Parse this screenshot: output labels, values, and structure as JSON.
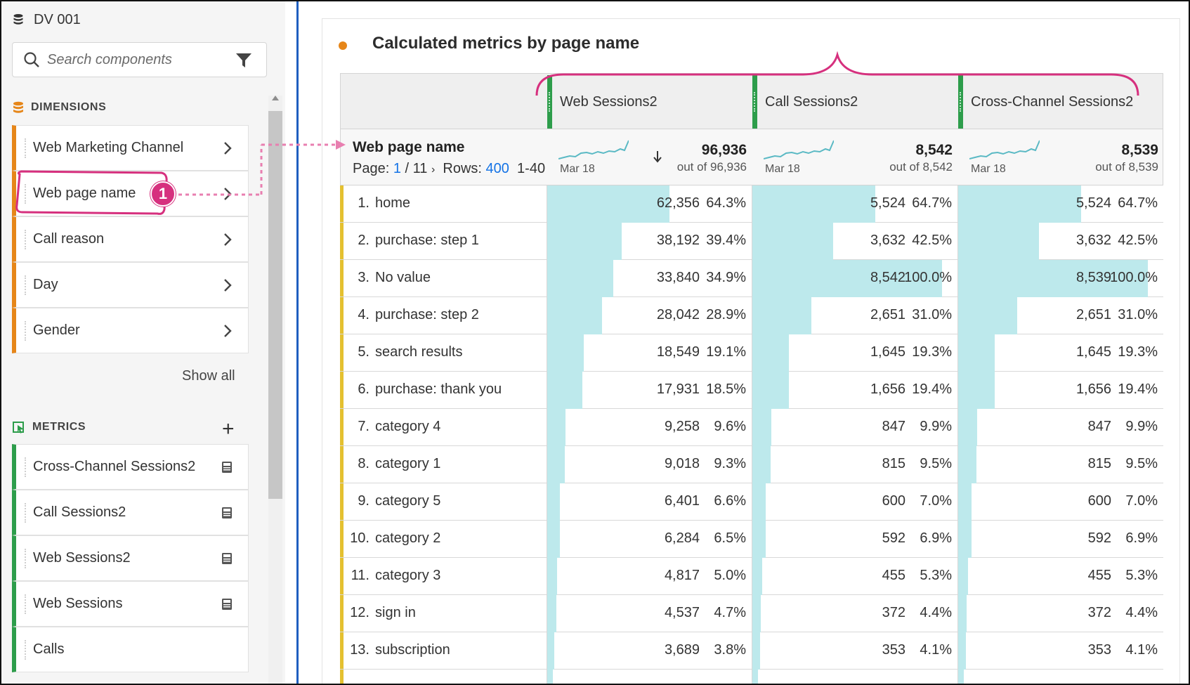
{
  "left_panel": {
    "dataset": "DV 001",
    "search_placeholder": "Search components",
    "dimensions_header": "DIMENSIONS",
    "dimensions": [
      "Web Marketing Channel",
      "Web page name",
      "Call reason",
      "Day",
      "Gender"
    ],
    "show_all": "Show all",
    "metrics_header": "METRICS",
    "metrics": [
      "Cross-Channel Sessions2",
      "Call Sessions2",
      "Web Sessions2",
      "Web Sessions",
      "Calls"
    ]
  },
  "panel": {
    "title": "Calculated metrics by page name",
    "dimension_title": "Web page name",
    "page_label": "Page:",
    "page_current": "1",
    "page_total": "/ 11",
    "rows_label": "Rows:",
    "rows_value": "400",
    "range_text": "1-40",
    "annotation_badge": "1"
  },
  "columns": [
    {
      "name": "Web Sessions2",
      "total": "96,936",
      "out_of": "out of 96,936",
      "spark_date": "Mar 18"
    },
    {
      "name": "Call Sessions2",
      "total": "8,542",
      "out_of": "out of 8,542",
      "spark_date": "Mar 18"
    },
    {
      "name": "Cross-Channel Sessions2",
      "total": "8,539",
      "out_of": "out of 8,539",
      "spark_date": "Mar 18"
    }
  ],
  "rows": [
    {
      "num": "1.",
      "name": "home",
      "cells": [
        {
          "v": "62,356",
          "p": "64.3%",
          "f": 0.643
        },
        {
          "v": "5,524",
          "p": "64.7%",
          "f": 0.647
        },
        {
          "v": "5,524",
          "p": "64.7%",
          "f": 0.647
        }
      ]
    },
    {
      "num": "2.",
      "name": "purchase: step 1",
      "cells": [
        {
          "v": "38,192",
          "p": "39.4%",
          "f": 0.394
        },
        {
          "v": "3,632",
          "p": "42.5%",
          "f": 0.425
        },
        {
          "v": "3,632",
          "p": "42.5%",
          "f": 0.425
        }
      ]
    },
    {
      "num": "3.",
      "name": "No value",
      "cells": [
        {
          "v": "33,840",
          "p": "34.9%",
          "f": 0.349
        },
        {
          "v": "8,542",
          "p": "100.0%",
          "f": 1.0
        },
        {
          "v": "8,539",
          "p": "100.0%",
          "f": 1.0
        }
      ]
    },
    {
      "num": "4.",
      "name": "purchase: step 2",
      "cells": [
        {
          "v": "28,042",
          "p": "28.9%",
          "f": 0.289
        },
        {
          "v": "2,651",
          "p": "31.0%",
          "f": 0.31
        },
        {
          "v": "2,651",
          "p": "31.0%",
          "f": 0.31
        }
      ]
    },
    {
      "num": "5.",
      "name": "search results",
      "cells": [
        {
          "v": "18,549",
          "p": "19.1%",
          "f": 0.191
        },
        {
          "v": "1,645",
          "p": "19.3%",
          "f": 0.193
        },
        {
          "v": "1,645",
          "p": "19.3%",
          "f": 0.193
        }
      ]
    },
    {
      "num": "6.",
      "name": "purchase: thank you",
      "cells": [
        {
          "v": "17,931",
          "p": "18.5%",
          "f": 0.185
        },
        {
          "v": "1,656",
          "p": "19.4%",
          "f": 0.194
        },
        {
          "v": "1,656",
          "p": "19.4%",
          "f": 0.194
        }
      ]
    },
    {
      "num": "7.",
      "name": "category 4",
      "cells": [
        {
          "v": "9,258",
          "p": "9.6%",
          "f": 0.096
        },
        {
          "v": "847",
          "p": "9.9%",
          "f": 0.099
        },
        {
          "v": "847",
          "p": "9.9%",
          "f": 0.099
        }
      ]
    },
    {
      "num": "8.",
      "name": "category 1",
      "cells": [
        {
          "v": "9,018",
          "p": "9.3%",
          "f": 0.093
        },
        {
          "v": "815",
          "p": "9.5%",
          "f": 0.095
        },
        {
          "v": "815",
          "p": "9.5%",
          "f": 0.095
        }
      ]
    },
    {
      "num": "9.",
      "name": "category 5",
      "cells": [
        {
          "v": "6,401",
          "p": "6.6%",
          "f": 0.066
        },
        {
          "v": "600",
          "p": "7.0%",
          "f": 0.07
        },
        {
          "v": "600",
          "p": "7.0%",
          "f": 0.07
        }
      ]
    },
    {
      "num": "10.",
      "name": "category 2",
      "cells": [
        {
          "v": "6,284",
          "p": "6.5%",
          "f": 0.065
        },
        {
          "v": "592",
          "p": "6.9%",
          "f": 0.069
        },
        {
          "v": "592",
          "p": "6.9%",
          "f": 0.069
        }
      ]
    },
    {
      "num": "11.",
      "name": "category 3",
      "cells": [
        {
          "v": "4,817",
          "p": "5.0%",
          "f": 0.05
        },
        {
          "v": "455",
          "p": "5.3%",
          "f": 0.053
        },
        {
          "v": "455",
          "p": "5.3%",
          "f": 0.053
        }
      ]
    },
    {
      "num": "12.",
      "name": "sign in",
      "cells": [
        {
          "v": "4,537",
          "p": "4.7%",
          "f": 0.047
        },
        {
          "v": "372",
          "p": "4.4%",
          "f": 0.044
        },
        {
          "v": "372",
          "p": "4.4%",
          "f": 0.044
        }
      ]
    },
    {
      "num": "13.",
      "name": "subscription",
      "cells": [
        {
          "v": "3,689",
          "p": "3.8%",
          "f": 0.038
        },
        {
          "v": "353",
          "p": "4.1%",
          "f": 0.041
        },
        {
          "v": "353",
          "p": "4.1%",
          "f": 0.041
        }
      ]
    },
    {
      "num": "",
      "name": "",
      "cells": [
        {
          "v": "",
          "p": "",
          "f": 0.03
        },
        {
          "v": "",
          "p": "",
          "f": 0.03
        },
        {
          "v": "",
          "p": "",
          "f": 0.03
        }
      ]
    }
  ],
  "colors": {
    "dimension_accent": "#e68619",
    "metric_accent": "#2d9d4b",
    "bar_fill": "#bde9ec",
    "annotation": "#d6307e",
    "link": "#1473e6"
  }
}
